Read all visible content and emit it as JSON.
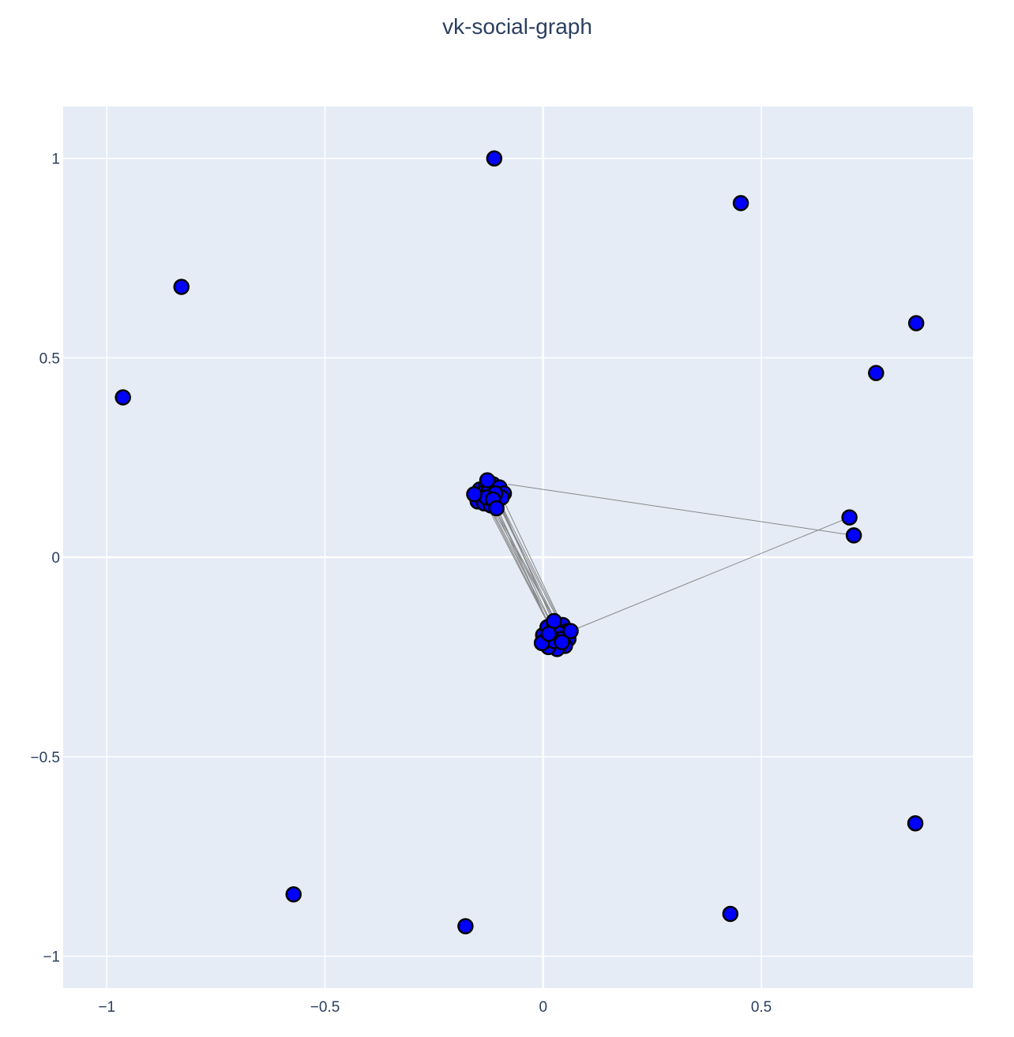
{
  "chart_data": {
    "type": "scatter",
    "title": "vk-social-graph",
    "xlabel": "",
    "ylabel": "",
    "xlim": [
      -1.1,
      0.985
    ],
    "ylim": [
      -1.08,
      1.13
    ],
    "grid": true,
    "legend": "none",
    "x_ticks": [
      {
        "value": -1,
        "label": "−1"
      },
      {
        "value": -0.5,
        "label": "−0.5"
      },
      {
        "value": 0,
        "label": "0"
      },
      {
        "value": 0.5,
        "label": "0.5"
      }
    ],
    "y_ticks": [
      {
        "value": 1,
        "label": "1"
      },
      {
        "value": 0.5,
        "label": "0.5"
      },
      {
        "value": 0,
        "label": "0"
      },
      {
        "value": -0.5,
        "label": "−0.5"
      },
      {
        "value": -1,
        "label": "−1"
      }
    ],
    "colors": {
      "plot_bg": "#e5ecf6",
      "grid": "#ffffff",
      "node_fill": "#0000ff",
      "node_outline": "#000000",
      "edge": "#888888"
    },
    "edges": [
      {
        "x": [
          -0.08,
          0.712
        ],
        "y": [
          0.183,
          0.055
        ]
      },
      {
        "x": 0.063,
        "y": -0.185,
        "x2": 0.702,
        "y2": 0.1
      },
      {
        "x": -0.13,
        "y": 0.14,
        "x2": 0.01,
        "y2": -0.16
      },
      {
        "x": -0.125,
        "y": 0.135,
        "x2": 0.02,
        "y2": -0.17
      },
      {
        "x": -0.12,
        "y": 0.13,
        "x2": 0.03,
        "y2": -0.165
      },
      {
        "x": -0.115,
        "y": 0.145,
        "x2": 0.025,
        "y2": -0.18
      },
      {
        "x": -0.11,
        "y": 0.15,
        "x2": 0.035,
        "y2": -0.175
      },
      {
        "x": -0.105,
        "y": 0.14,
        "x2": 0.04,
        "y2": -0.17
      },
      {
        "x": -0.1,
        "y": 0.135,
        "x2": 0.02,
        "y2": -0.155
      },
      {
        "x": -0.118,
        "y": 0.155,
        "x2": 0.015,
        "y2": -0.175
      },
      {
        "x": -0.112,
        "y": 0.125,
        "x2": 0.028,
        "y2": -0.16
      },
      {
        "x": -0.108,
        "y": 0.16,
        "x2": 0.032,
        "y2": -0.185
      },
      {
        "x": -0.122,
        "y": 0.15,
        "x2": 0.022,
        "y2": -0.19
      },
      {
        "x": -0.102,
        "y": 0.145,
        "x2": 0.038,
        "y2": -0.16
      },
      {
        "x": -0.128,
        "y": 0.128,
        "x2": 0.012,
        "y2": -0.168
      },
      {
        "x": -0.095,
        "y": 0.152,
        "x2": 0.045,
        "y2": -0.172
      },
      {
        "x": -0.132,
        "y": 0.145,
        "x2": 0.018,
        "y2": -0.178
      }
    ],
    "nodes": [
      {
        "x": -0.112,
        "y": 1.0
      },
      {
        "x": 0.453,
        "y": 0.888
      },
      {
        "x": -0.829,
        "y": 0.678
      },
      {
        "x": 0.855,
        "y": 0.587
      },
      {
        "x": 0.763,
        "y": 0.462
      },
      {
        "x": -0.963,
        "y": 0.401
      },
      {
        "x": 0.702,
        "y": 0.1
      },
      {
        "x": 0.712,
        "y": 0.055
      },
      {
        "x": 0.853,
        "y": -0.667
      },
      {
        "x": -0.572,
        "y": -0.845
      },
      {
        "x": 0.429,
        "y": -0.894
      },
      {
        "x": -0.178,
        "y": -0.925
      },
      {
        "x": -0.145,
        "y": 0.17
      },
      {
        "x": -0.13,
        "y": 0.18
      },
      {
        "x": -0.115,
        "y": 0.183
      },
      {
        "x": -0.1,
        "y": 0.175
      },
      {
        "x": -0.09,
        "y": 0.16
      },
      {
        "x": -0.155,
        "y": 0.155
      },
      {
        "x": -0.15,
        "y": 0.14
      },
      {
        "x": -0.135,
        "y": 0.135
      },
      {
        "x": -0.12,
        "y": 0.13
      },
      {
        "x": -0.105,
        "y": 0.14
      },
      {
        "x": -0.095,
        "y": 0.15
      },
      {
        "x": -0.14,
        "y": 0.16
      },
      {
        "x": -0.125,
        "y": 0.165
      },
      {
        "x": -0.11,
        "y": 0.16
      },
      {
        "x": -0.13,
        "y": 0.15
      },
      {
        "x": -0.115,
        "y": 0.145
      },
      {
        "x": -0.128,
        "y": 0.193
      },
      {
        "x": -0.158,
        "y": 0.158
      },
      {
        "x": -0.107,
        "y": 0.123
      },
      {
        "x": 0.0,
        "y": -0.195
      },
      {
        "x": 0.01,
        "y": -0.175
      },
      {
        "x": 0.025,
        "y": -0.165
      },
      {
        "x": 0.045,
        "y": -0.17
      },
      {
        "x": 0.055,
        "y": -0.185
      },
      {
        "x": 0.058,
        "y": -0.205
      },
      {
        "x": 0.05,
        "y": -0.222
      },
      {
        "x": 0.032,
        "y": -0.23
      },
      {
        "x": 0.012,
        "y": -0.225
      },
      {
        "x": 0.005,
        "y": -0.21
      },
      {
        "x": 0.02,
        "y": -0.195
      },
      {
        "x": 0.035,
        "y": -0.19
      },
      {
        "x": 0.04,
        "y": -0.205
      },
      {
        "x": 0.025,
        "y": -0.21
      },
      {
        "x": 0.025,
        "y": -0.16
      },
      {
        "x": 0.063,
        "y": -0.185
      },
      {
        "x": 0.043,
        "y": -0.213
      },
      {
        "x": -0.003,
        "y": -0.215
      },
      {
        "x": 0.013,
        "y": -0.192
      }
    ]
  }
}
